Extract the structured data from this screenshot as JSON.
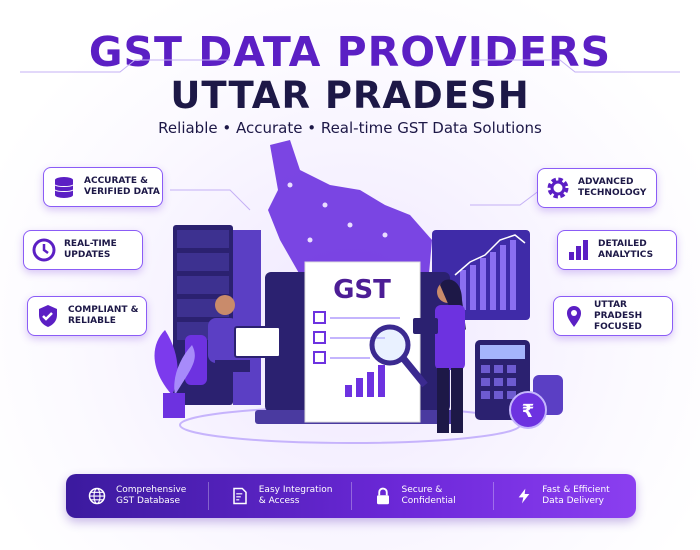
{
  "title": {
    "line1": "GST DATA PROVIDERS",
    "line2": "UTTAR PRADESH",
    "subtitle": "Reliable • Accurate • Real-time GST Data Solutions"
  },
  "features_left": [
    {
      "icon": "database-icon",
      "line1": "Accurate &",
      "line2": "Verified Data"
    },
    {
      "icon": "clock-icon",
      "line1": "Real-Time",
      "line2": "Updates"
    },
    {
      "icon": "shield-check-icon",
      "line1": "Compliant &",
      "line2": "Reliable"
    }
  ],
  "features_right": [
    {
      "icon": "gear-icon",
      "line1": "Advanced",
      "line2": "Technology"
    },
    {
      "icon": "bar-chart-icon",
      "line1": "Detailed",
      "line2": "Analytics"
    },
    {
      "icon": "map-pin-icon",
      "line1": "Uttar Pradesh",
      "line2": "Focused"
    }
  ],
  "illustration": {
    "document_label": "GST",
    "currency_symbol": "₹"
  },
  "bottom_bar": [
    {
      "icon": "globe-icon",
      "line1": "Comprehensive",
      "line2": "GST Database"
    },
    {
      "icon": "document-icon",
      "line1": "Easy Integration",
      "line2": "& Access"
    },
    {
      "icon": "lock-icon",
      "line1": "Secure &",
      "line2": "Confidential"
    },
    {
      "icon": "lightning-icon",
      "line1": "Fast & Efficient",
      "line2": "Data Delivery"
    }
  ],
  "colors": {
    "primary": "#5b1fc4",
    "dark": "#1d1847",
    "accent": "#8b5cf6"
  }
}
